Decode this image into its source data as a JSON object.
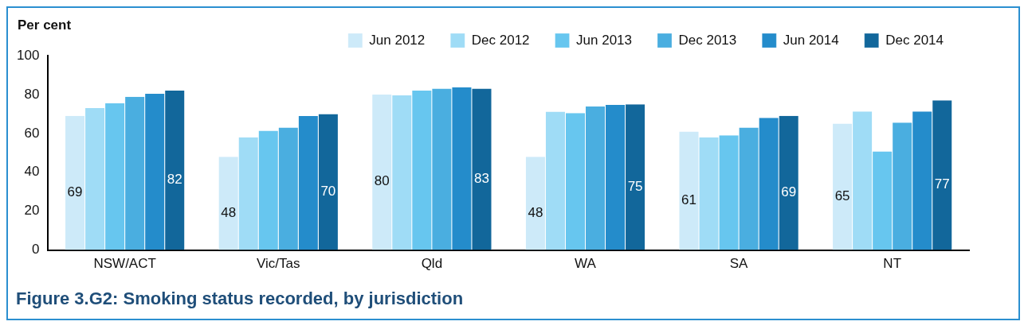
{
  "chart_data": {
    "type": "bar",
    "title": "Figure 3.G2: Smoking status recorded, by jurisdiction",
    "ylabel": "Per cent",
    "categories": [
      "NSW/ACT",
      "Vic/Tas",
      "Qld",
      "WA",
      "SA",
      "NT"
    ],
    "series": [
      {
        "name": "Jun 2012",
        "color": "#cdeaf9",
        "values": [
          69,
          48,
          80,
          48,
          61,
          65
        ],
        "value_labels": [
          "69",
          "48",
          "80",
          "48",
          "61",
          "65"
        ]
      },
      {
        "name": "Dec 2012",
        "color": "#9fdcf6",
        "values": [
          73,
          58,
          79.6,
          71.2,
          58,
          71.3
        ]
      },
      {
        "name": "Jun 2013",
        "color": "#67c6ef",
        "values": [
          75.5,
          61.4,
          82,
          70.5,
          59,
          50.7
        ]
      },
      {
        "name": "Dec 2013",
        "color": "#4aaee0",
        "values": [
          78.8,
          63,
          83,
          73.8,
          63,
          65.6
        ]
      },
      {
        "name": "Jun 2014",
        "color": "#248ccb",
        "values": [
          80.4,
          68.9,
          83.7,
          74.7,
          68,
          71.3
        ]
      },
      {
        "name": "Dec 2014",
        "color": "#12679b",
        "values": [
          82,
          70,
          83,
          75,
          69,
          77
        ],
        "value_labels": [
          "82",
          "70",
          "83",
          "75",
          "69",
          "77"
        ]
      }
    ],
    "ylim": [
      0,
      100
    ],
    "yticks": [
      0,
      20,
      40,
      60,
      80,
      100
    ],
    "grid": false,
    "legend": "top"
  }
}
